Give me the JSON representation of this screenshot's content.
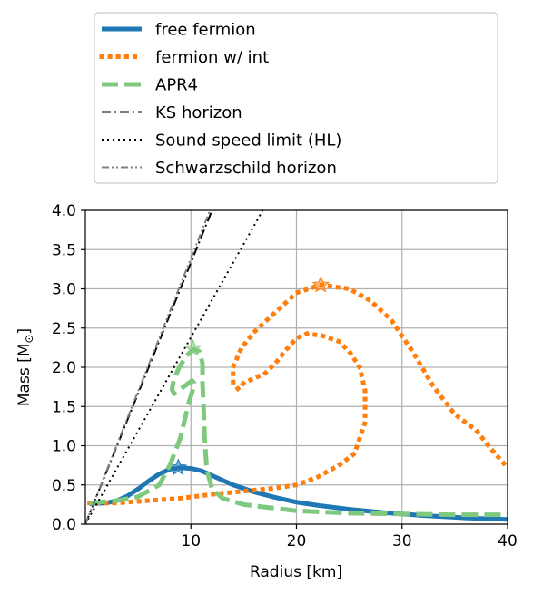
{
  "chart_data": {
    "type": "line",
    "xlabel": "Radius [km]",
    "ylabel_prefix": "Mass [M",
    "ylabel_sub": "⊙",
    "ylabel_suffix": "]",
    "xlim": [
      0,
      40
    ],
    "ylim": [
      0,
      4.0
    ],
    "grid": true,
    "legend_position": "above",
    "xticks": [
      10,
      20,
      30,
      40
    ],
    "yticks": [
      0.0,
      0.5,
      1.0,
      1.5,
      2.0,
      2.5,
      3.0,
      3.5,
      4.0
    ],
    "series": [
      {
        "name": "free fermion",
        "color": "#1f77b4",
        "style": "solid",
        "points": [
          [
            0.4,
            0.26
          ],
          [
            2,
            0.27
          ],
          [
            3,
            0.3
          ],
          [
            4,
            0.36
          ],
          [
            5,
            0.45
          ],
          [
            6,
            0.55
          ],
          [
            7,
            0.64
          ],
          [
            8,
            0.7
          ],
          [
            9,
            0.72
          ],
          [
            10,
            0.71
          ],
          [
            11,
            0.68
          ],
          [
            12,
            0.62
          ],
          [
            14,
            0.5
          ],
          [
            16,
            0.41
          ],
          [
            18,
            0.34
          ],
          [
            20,
            0.28
          ],
          [
            22,
            0.24
          ],
          [
            25,
            0.19
          ],
          [
            28,
            0.15
          ],
          [
            32,
            0.11
          ],
          [
            36,
            0.08
          ],
          [
            40,
            0.06
          ]
        ],
        "max_marker": [
          8.8,
          0.72
        ]
      },
      {
        "name": "fermion w/ int",
        "color": "#ff7f0e",
        "style": "dotted",
        "points": [
          [
            0.4,
            0.27
          ],
          [
            3,
            0.27
          ],
          [
            6,
            0.3
          ],
          [
            9,
            0.33
          ],
          [
            12,
            0.38
          ],
          [
            15,
            0.42
          ],
          [
            18,
            0.46
          ],
          [
            20,
            0.5
          ],
          [
            22,
            0.6
          ],
          [
            24,
            0.75
          ],
          [
            25.5,
            0.9
          ],
          [
            26.5,
            1.3
          ],
          [
            26.5,
            1.7
          ],
          [
            26,
            2.0
          ],
          [
            25,
            2.2
          ],
          [
            24,
            2.33
          ],
          [
            22.5,
            2.4
          ],
          [
            21,
            2.43
          ],
          [
            20,
            2.37
          ],
          [
            19,
            2.22
          ],
          [
            18,
            2.05
          ],
          [
            17,
            1.92
          ],
          [
            16,
            1.86
          ],
          [
            15,
            1.8
          ],
          [
            14.5,
            1.72
          ],
          [
            14,
            1.8
          ],
          [
            14,
            2.0
          ],
          [
            14.8,
            2.25
          ],
          [
            16,
            2.45
          ],
          [
            18,
            2.7
          ],
          [
            20,
            2.95
          ],
          [
            22.3,
            3.05
          ],
          [
            25,
            3.0
          ],
          [
            27,
            2.85
          ],
          [
            29,
            2.6
          ],
          [
            31,
            2.2
          ],
          [
            33,
            1.75
          ],
          [
            35,
            1.4
          ],
          [
            37,
            1.2
          ],
          [
            38.5,
            0.95
          ],
          [
            40,
            0.72
          ]
        ],
        "max_marker": [
          22.3,
          3.05
        ]
      },
      {
        "name": "APR4",
        "color": "#7fc97f",
        "style": "dashed",
        "points": [
          [
            0.4,
            0.27
          ],
          [
            3,
            0.3
          ],
          [
            5,
            0.35
          ],
          [
            7,
            0.5
          ],
          [
            8,
            0.75
          ],
          [
            9,
            1.1
          ],
          [
            9.8,
            1.55
          ],
          [
            10.2,
            1.72
          ],
          [
            10.3,
            1.8
          ],
          [
            10.1,
            1.83
          ],
          [
            9.6,
            1.78
          ],
          [
            9,
            1.72
          ],
          [
            8.4,
            1.66
          ],
          [
            8.2,
            1.72
          ],
          [
            8.4,
            1.85
          ],
          [
            8.9,
            2.0
          ],
          [
            9.6,
            2.15
          ],
          [
            10.3,
            2.23
          ],
          [
            10.8,
            2.2
          ],
          [
            11.1,
            2.05
          ],
          [
            11.1,
            1.8
          ],
          [
            11.2,
            1.5
          ],
          [
            11.3,
            1.1
          ],
          [
            11.5,
            0.7
          ],
          [
            12,
            0.45
          ],
          [
            13,
            0.33
          ],
          [
            15,
            0.25
          ],
          [
            20,
            0.17
          ],
          [
            25,
            0.14
          ],
          [
            30,
            0.13
          ],
          [
            35,
            0.12
          ],
          [
            40,
            0.12
          ]
        ],
        "max_marker": [
          10.2,
          2.24
        ]
      },
      {
        "name": "KS horizon",
        "color": "#000000",
        "style": "dashdot",
        "points": [
          [
            0,
            0
          ],
          [
            12,
            4.0
          ]
        ]
      },
      {
        "name": "Sound speed limit (HL)",
        "color": "#000000",
        "style": "finedotted",
        "points": [
          [
            0,
            0
          ],
          [
            16.8,
            4.0
          ]
        ]
      },
      {
        "name": "Schwarzschild horizon",
        "color": "#808080",
        "style": "dashdotdot",
        "points": [
          [
            0,
            0
          ],
          [
            11.8,
            4.0
          ]
        ]
      }
    ]
  }
}
